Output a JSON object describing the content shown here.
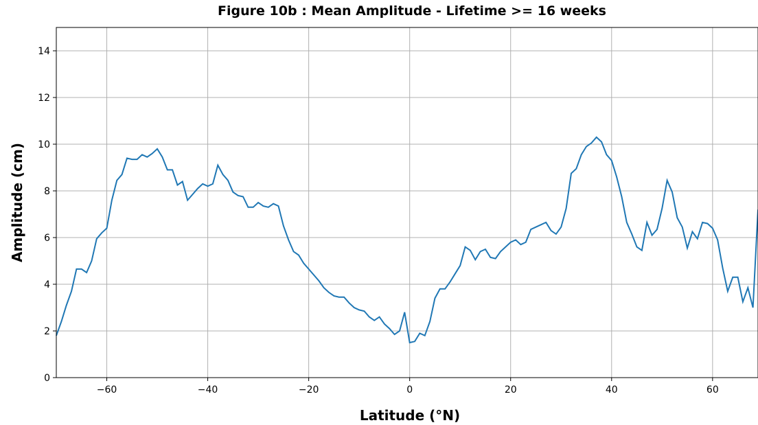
{
  "chart_data": {
    "type": "line",
    "title": "Figure 10b : Mean Amplitude  - Lifetime >= 16 weeks",
    "xlabel": "Latitude (°N)",
    "ylabel": "Amplitude (cm)",
    "color": "#1f77b4",
    "grid": true,
    "xlim": [
      -70,
      69
    ],
    "ylim": [
      0,
      15
    ],
    "xticks": [
      {
        "value": -60,
        "label": "−60"
      },
      {
        "value": -40,
        "label": "−40"
      },
      {
        "value": -20,
        "label": "−20"
      },
      0,
      20,
      40,
      60
    ],
    "yticks": [
      0,
      2,
      4,
      6,
      8,
      10,
      12,
      14
    ],
    "x": [
      -70,
      -69,
      -68,
      -67,
      -66,
      -65,
      -64,
      -63,
      -62,
      -61,
      -60,
      -59,
      -58,
      -57,
      -56,
      -55,
      -54,
      -53,
      -52,
      -51,
      -50,
      -49,
      -48,
      -47,
      -46,
      -45,
      -44,
      -43,
      -42,
      -41,
      -40,
      -39,
      -38,
      -37,
      -36,
      -35,
      -34,
      -33,
      -32,
      -31,
      -30,
      -29,
      -28,
      -27,
      -26,
      -25,
      -24,
      -23,
      -22,
      -21,
      -20,
      -19,
      -18,
      -17,
      -16,
      -15,
      -14,
      -13,
      -12,
      -11,
      -10,
      -9,
      -8,
      -7,
      -6,
      -5,
      -4,
      -3,
      -2,
      -1,
      0,
      1,
      2,
      3,
      4,
      5,
      6,
      7,
      8,
      9,
      10,
      11,
      12,
      13,
      14,
      15,
      16,
      17,
      18,
      19,
      20,
      21,
      22,
      23,
      24,
      25,
      26,
      27,
      28,
      29,
      30,
      31,
      32,
      33,
      34,
      35,
      36,
      37,
      38,
      39,
      40,
      41,
      42,
      43,
      44,
      45,
      46,
      47,
      48,
      49,
      50,
      51,
      52,
      53,
      54,
      55,
      56,
      57,
      58,
      59,
      60,
      61,
      62,
      63,
      64,
      65,
      66,
      67,
      68,
      69
    ],
    "values": [
      1.8,
      2.4,
      3.1,
      3.7,
      4.65,
      4.65,
      4.5,
      5.0,
      5.95,
      6.2,
      6.4,
      7.6,
      8.45,
      8.7,
      9.4,
      9.35,
      9.35,
      9.55,
      9.45,
      9.6,
      9.8,
      9.45,
      8.9,
      8.9,
      8.25,
      8.4,
      7.6,
      7.85,
      8.1,
      8.3,
      8.2,
      8.3,
      9.1,
      8.7,
      8.45,
      7.95,
      7.8,
      7.75,
      7.3,
      7.3,
      7.5,
      7.35,
      7.3,
      7.45,
      7.35,
      6.5,
      5.9,
      5.4,
      5.25,
      4.9,
      4.65,
      4.4,
      4.15,
      3.85,
      3.65,
      3.5,
      3.45,
      3.45,
      3.2,
      3.0,
      2.9,
      2.85,
      2.6,
      2.45,
      2.6,
      2.3,
      2.1,
      1.85,
      2.0,
      2.8,
      1.5,
      1.55,
      1.9,
      1.8,
      2.4,
      3.4,
      3.8,
      3.8,
      4.1,
      4.45,
      4.8,
      5.6,
      5.45,
      5.05,
      5.4,
      5.5,
      5.15,
      5.1,
      5.4,
      5.6,
      5.8,
      5.9,
      5.7,
      5.8,
      6.35,
      6.45,
      6.55,
      6.65,
      6.3,
      6.15,
      6.45,
      7.25,
      8.75,
      8.95,
      9.55,
      9.9,
      10.05,
      10.3,
      10.1,
      9.55,
      9.3,
      8.6,
      7.75,
      6.65,
      6.15,
      5.6,
      5.45,
      6.65,
      6.1,
      6.35,
      7.25,
      8.45,
      7.95,
      6.85,
      6.45,
      5.55,
      6.25,
      5.95,
      6.65,
      6.6,
      6.4,
      5.9,
      4.7,
      3.7,
      4.3,
      4.3,
      3.25,
      3.85,
      3.0,
      7.2
    ]
  }
}
